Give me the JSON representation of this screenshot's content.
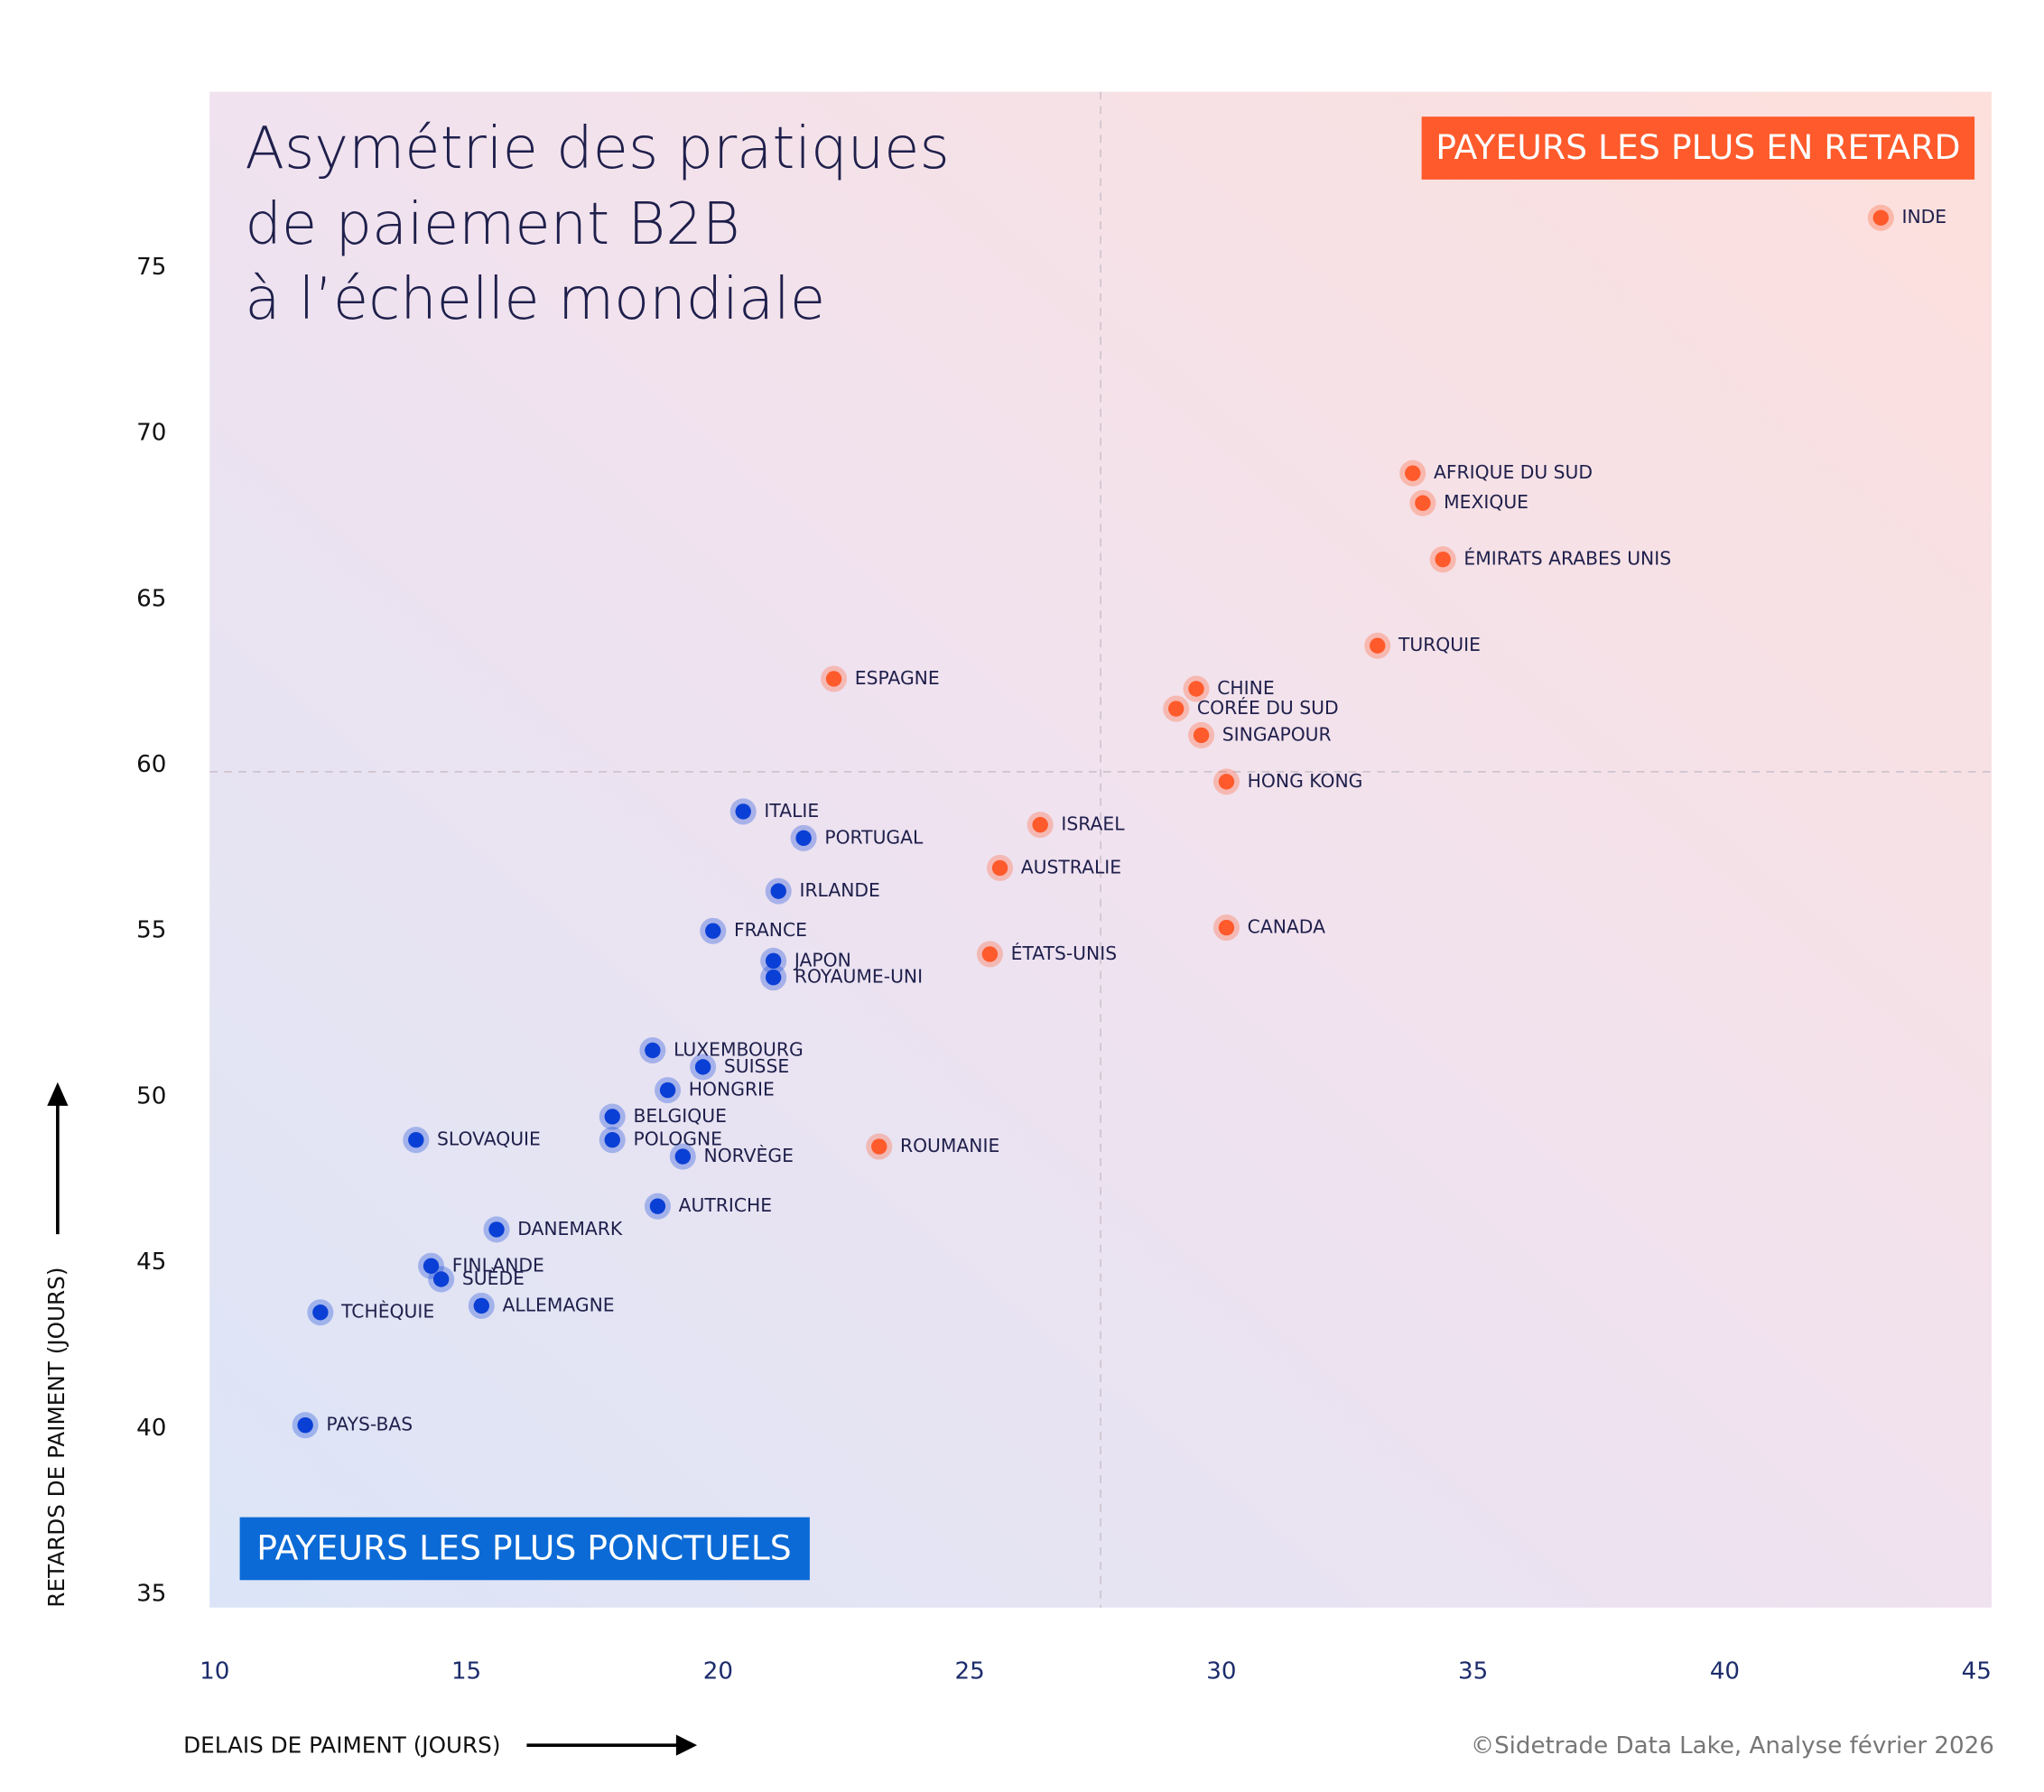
{
  "chart_data": {
    "type": "scatter",
    "title": [
      "Asymétrie des pratiques",
      "de paiement B2B",
      "à l’échelle mondiale"
    ],
    "x_label": "DELAIS DE PAIMENT (JOURS)",
    "y_label": "RETARDS DE PAIMENT (JOURS)",
    "source": "©Sidetrade Data Lake, Analyse février 2026",
    "xlim": [
      9.9,
      45.3
    ],
    "ylim": [
      34.6,
      80.3
    ],
    "xticks": [
      10,
      15,
      20,
      25,
      30,
      35,
      40,
      45
    ],
    "yticks": [
      35,
      40,
      45,
      50,
      55,
      60,
      65,
      70,
      75
    ],
    "ref_x": 27.6,
    "ref_y": 59.8,
    "series": [
      {
        "name": "PAYEURS LES PLUS EN RETARD",
        "color": "#ff5a2b",
        "labels": [
          "INDE",
          "AFRIQUE DU SUD",
          "MEXIQUE",
          "ÉMIRATS ARABES UNIS",
          "TURQUIE",
          "ESPAGNE",
          "CHINE",
          "CORÉE DU SUD",
          "SINGAPOUR",
          "HONG KONG",
          "ISRAEL",
          "AUSTRALIE",
          "CANADA",
          "ÉTATS-UNIS",
          "ROUMANIE"
        ],
        "x": [
          43.1,
          33.8,
          34.0,
          34.4,
          33.1,
          22.3,
          29.5,
          29.1,
          29.6,
          30.1,
          26.4,
          25.6,
          30.1,
          25.4,
          23.2
        ],
        "values": [
          76.5,
          68.8,
          67.9,
          66.2,
          63.6,
          62.6,
          62.3,
          61.7,
          60.9,
          59.5,
          58.2,
          56.9,
          55.1,
          54.3,
          48.5
        ]
      },
      {
        "name": "PAYEURS LES PLUS PONCTUELS",
        "color": "#0a3fd6",
        "labels": [
          "ITALIE",
          "PORTUGAL",
          "IRLANDE",
          "FRANCE",
          "JAPON",
          "ROYAUME-UNI",
          "LUXEMBOURG",
          "SUISSE",
          "HONGRIE",
          "BELGIQUE",
          "SLOVAQUIE",
          "POLOGNE",
          "NORVÈGE",
          "AUTRICHE",
          "DANEMARK",
          "FINLANDE",
          "SUÈDE",
          "ALLEMAGNE",
          "TCHÈQUIE",
          "PAYS-BAS"
        ],
        "x": [
          20.5,
          21.7,
          21.2,
          19.9,
          21.1,
          21.1,
          18.7,
          19.7,
          19.0,
          17.9,
          14.0,
          17.9,
          19.3,
          18.8,
          15.6,
          14.3,
          14.5,
          15.3,
          12.1,
          11.8
        ],
        "values": [
          58.6,
          57.8,
          56.2,
          55.0,
          54.1,
          53.6,
          51.4,
          50.9,
          50.2,
          49.4,
          48.7,
          48.7,
          48.2,
          46.7,
          46.0,
          44.9,
          44.5,
          43.7,
          43.5,
          40.1
        ]
      }
    ]
  }
}
